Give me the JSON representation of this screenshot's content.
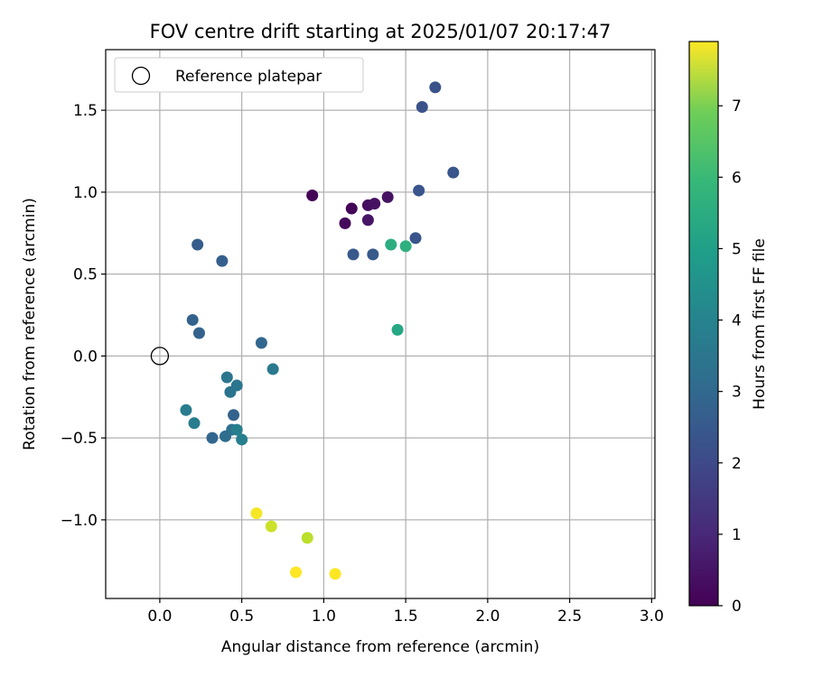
{
  "chart_data": {
    "type": "scatter",
    "title": "FOV centre drift starting at 2025/01/07 20:17:47",
    "xlabel": "Angular distance from reference (arcmin)",
    "ylabel": "Rotation from reference (arcmin)",
    "xlim": [
      -0.33,
      3.02
    ],
    "ylim": [
      -1.48,
      1.87
    ],
    "xticks": [
      0.0,
      0.5,
      1.0,
      1.5,
      2.0,
      2.5,
      3.0
    ],
    "xtick_labels": [
      "0.0",
      "0.5",
      "1.0",
      "1.5",
      "2.0",
      "2.5",
      "3.0"
    ],
    "yticks": [
      -1.0,
      -0.5,
      0.0,
      0.5,
      1.0,
      1.5
    ],
    "ytick_labels": [
      "−1.0",
      "−0.5",
      "0.0",
      "0.5",
      "1.0",
      "1.5"
    ],
    "grid": true,
    "legend": {
      "placement": "upper-left",
      "entries": [
        "Reference platepar"
      ]
    },
    "reference_point": {
      "x": 0.0,
      "y": 0.0,
      "marker": "open-circle"
    },
    "colorbar": {
      "label": "Hours from first FF file",
      "colormap": "viridis",
      "range": [
        0,
        7.9
      ],
      "ticks": [
        0,
        1,
        2,
        3,
        4,
        5,
        6,
        7
      ],
      "tick_labels": [
        "0",
        "1",
        "2",
        "3",
        "4",
        "5",
        "6",
        "7"
      ]
    },
    "points": [
      {
        "x": 0.93,
        "y": 0.98,
        "c": 0.05
      },
      {
        "x": 1.17,
        "y": 0.9,
        "c": 0.1
      },
      {
        "x": 1.13,
        "y": 0.81,
        "c": 0.2
      },
      {
        "x": 1.27,
        "y": 0.92,
        "c": 0.3
      },
      {
        "x": 1.31,
        "y": 0.93,
        "c": 0.35
      },
      {
        "x": 1.39,
        "y": 0.97,
        "c": 0.4
      },
      {
        "x": 1.27,
        "y": 0.83,
        "c": 0.45
      },
      {
        "x": 1.68,
        "y": 1.64,
        "c": 2.0
      },
      {
        "x": 1.6,
        "y": 1.52,
        "c": 2.0
      },
      {
        "x": 1.79,
        "y": 1.12,
        "c": 2.1
      },
      {
        "x": 1.58,
        "y": 1.01,
        "c": 2.1
      },
      {
        "x": 1.56,
        "y": 0.72,
        "c": 2.1
      },
      {
        "x": 1.18,
        "y": 0.62,
        "c": 2.2
      },
      {
        "x": 1.3,
        "y": 0.62,
        "c": 2.2
      },
      {
        "x": 0.23,
        "y": 0.68,
        "c": 2.3
      },
      {
        "x": 0.38,
        "y": 0.58,
        "c": 2.4
      },
      {
        "x": 0.2,
        "y": 0.22,
        "c": 2.5
      },
      {
        "x": 0.24,
        "y": 0.14,
        "c": 2.5
      },
      {
        "x": 0.62,
        "y": 0.08,
        "c": 2.6
      },
      {
        "x": 0.45,
        "y": -0.36,
        "c": 2.5
      },
      {
        "x": 0.32,
        "y": -0.5,
        "c": 2.6
      },
      {
        "x": 0.4,
        "y": -0.49,
        "c": 2.8
      },
      {
        "x": 0.44,
        "y": -0.45,
        "c": 2.9
      },
      {
        "x": 0.43,
        "y": -0.22,
        "c": 3.0
      },
      {
        "x": 0.41,
        "y": -0.13,
        "c": 3.1
      },
      {
        "x": 0.47,
        "y": -0.18,
        "c": 3.1
      },
      {
        "x": 0.69,
        "y": -0.08,
        "c": 3.2
      },
      {
        "x": 0.16,
        "y": -0.33,
        "c": 3.3
      },
      {
        "x": 0.21,
        "y": -0.41,
        "c": 3.3
      },
      {
        "x": 0.47,
        "y": -0.45,
        "c": 3.4
      },
      {
        "x": 0.5,
        "y": -0.51,
        "c": 3.4
      },
      {
        "x": 1.45,
        "y": 0.16,
        "c": 4.7
      },
      {
        "x": 1.41,
        "y": 0.68,
        "c": 4.9
      },
      {
        "x": 1.5,
        "y": 0.67,
        "c": 5.0
      },
      {
        "x": 0.59,
        "y": -0.96,
        "c": 7.8
      },
      {
        "x": 0.68,
        "y": -1.04,
        "c": 7.3
      },
      {
        "x": 0.9,
        "y": -1.11,
        "c": 7.1
      },
      {
        "x": 0.83,
        "y": -1.32,
        "c": 7.9
      },
      {
        "x": 1.07,
        "y": -1.33,
        "c": 7.9
      }
    ]
  }
}
